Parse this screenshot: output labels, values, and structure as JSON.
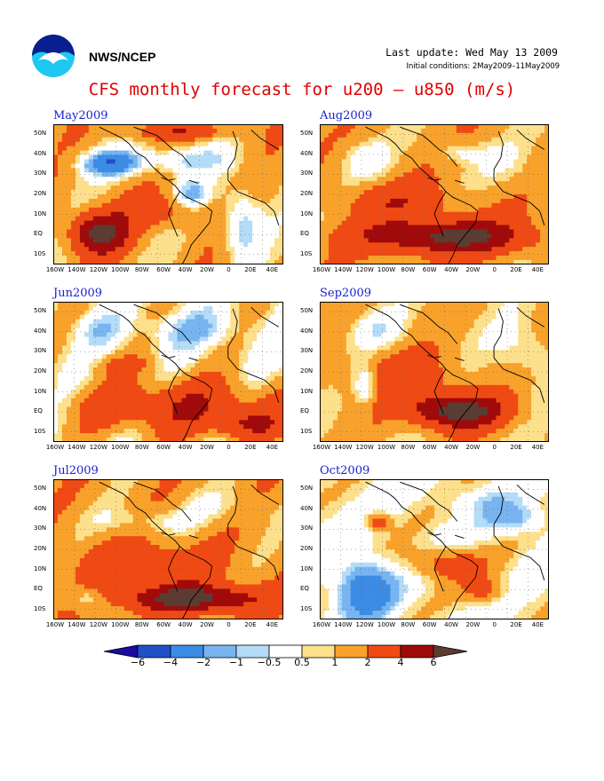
{
  "header": {
    "agency": "NWS/NCEP",
    "last_update": "Last update: Wed May 13 2009",
    "initial_conditions": "Initial conditions: 2May2009–11May2009",
    "title": "CFS monthly forecast for u200 – u850 (m/s)"
  },
  "logo": {
    "name": "noaa-logo",
    "colors": [
      "#0a1f8f",
      "#1ec8f0",
      "#ffffff"
    ]
  },
  "panels": [
    {
      "title": "May2009"
    },
    {
      "title": "Aug2009"
    },
    {
      "title": "Jun2009"
    },
    {
      "title": "Sep2009"
    },
    {
      "title": "Jul2009"
    },
    {
      "title": "Oct2009"
    }
  ],
  "axes": {
    "lat_labels": [
      "50N",
      "40N",
      "30N",
      "20N",
      "10N",
      "EQ",
      "10S"
    ],
    "lon_labels": [
      "160W",
      "140W",
      "120W",
      "100W",
      "80W",
      "60W",
      "40W",
      "20W",
      "0",
      "20E",
      "40E"
    ]
  },
  "colorbar": {
    "labels": [
      "−6",
      "−4",
      "−2",
      "−1",
      "−0.5",
      "0.5",
      "1",
      "2",
      "4",
      "6"
    ],
    "colors": [
      "#1a0aa0",
      "#2050c8",
      "#3c8ce6",
      "#78b4f0",
      "#b4dcf8",
      "#ffffff",
      "#fde08c",
      "#f8a22c",
      "#f04a14",
      "#a00a0a",
      "#5a3c32"
    ]
  }
}
